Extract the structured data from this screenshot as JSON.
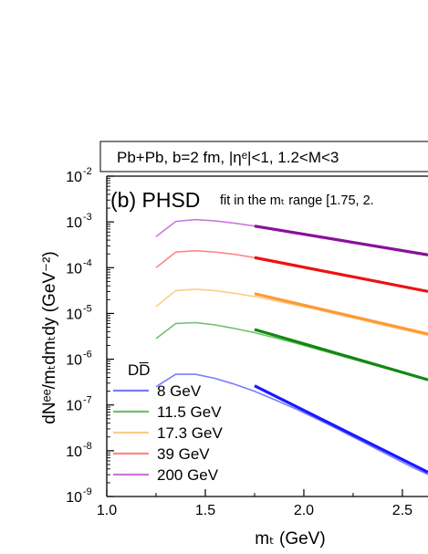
{
  "chart_data": {
    "type": "line",
    "header": "Pb+Pb, b=2 fm, |ηᵉ|<1, 1.2<M<3",
    "panel_label": "(b) PHSD",
    "fit_note": "fit in the mₜ range [1.75, 2.",
    "xlabel": "mₜ (GeV)",
    "ylabel": "dNᵉᵉ/mₜdmₜdy (GeV⁻²)",
    "xlim": [
      1.0,
      2.63
    ],
    "ylim_log10": [
      -9,
      -2
    ],
    "y_scale": "log",
    "grid": false,
    "x_ticks": [
      1.0,
      1.5,
      2.0,
      2.5
    ],
    "x_tick_labels": [
      "1.0",
      "1.5",
      "2.0",
      "2.5"
    ],
    "y_ticks_log10": [
      -9,
      -8,
      -7,
      -6,
      -5,
      -4,
      -3,
      -2
    ],
    "y_tick_labels": [
      {
        "base": "10",
        "exp": "-9"
      },
      {
        "base": "10",
        "exp": "-8"
      },
      {
        "base": "10",
        "exp": "-7"
      },
      {
        "base": "10",
        "exp": "-6"
      },
      {
        "base": "10",
        "exp": "-5"
      },
      {
        "base": "10",
        "exp": "-4"
      },
      {
        "base": "10",
        "exp": "-3"
      },
      {
        "base": "10",
        "exp": "-2"
      }
    ],
    "legend_title": "DD̅",
    "legend_placement": "bottom-left",
    "x": [
      1.25,
      1.35,
      1.45,
      1.55,
      1.65,
      1.75,
      1.85,
      1.95,
      2.05,
      2.15,
      2.25,
      2.35,
      2.45,
      2.55,
      2.63
    ],
    "series": [
      {
        "name": "8 GeV",
        "color": "#7b7bff",
        "fit_color": "#1a1aff",
        "log10_y": [
          -6.6,
          -6.33,
          -6.33,
          -6.42,
          -6.55,
          -6.7,
          -6.88,
          -7.07,
          -7.27,
          -7.48,
          -7.7,
          -7.92,
          -8.14,
          -8.36,
          -8.52
        ],
        "fit_x": [
          1.75,
          2.63
        ],
        "fit_log10_y": [
          -6.58,
          -8.47
        ]
      },
      {
        "name": "11.5 GeV",
        "color": "#6fbf6f",
        "fit_color": "#118811",
        "log10_y": [
          -5.55,
          -5.22,
          -5.2,
          -5.25,
          -5.33,
          -5.42,
          -5.53,
          -5.64,
          -5.76,
          -5.88,
          -6.0,
          -6.12,
          -6.24,
          -6.36,
          -6.46
        ],
        "fit_x": [
          1.75,
          2.63
        ],
        "fit_log10_y": [
          -5.35,
          -6.45
        ]
      },
      {
        "name": "17.3 GeV",
        "color": "#ffcc88",
        "fit_color": "#ff9933",
        "log10_y": [
          -4.85,
          -4.5,
          -4.47,
          -4.5,
          -4.56,
          -4.63,
          -4.72,
          -4.81,
          -4.9,
          -5.0,
          -5.1,
          -5.2,
          -5.3,
          -5.4,
          -5.48
        ],
        "fit_x": [
          1.75,
          2.63
        ],
        "fit_log10_y": [
          -4.57,
          -5.45
        ]
      },
      {
        "name": "39 GeV",
        "color": "#ff8888",
        "fit_color": "#ee1111",
        "log10_y": [
          -4.0,
          -3.66,
          -3.63,
          -3.66,
          -3.71,
          -3.78,
          -3.86,
          -3.94,
          -4.02,
          -4.11,
          -4.2,
          -4.28,
          -4.37,
          -4.46,
          -4.53
        ],
        "fit_x": [
          1.75,
          2.63
        ],
        "fit_log10_y": [
          -3.78,
          -4.52
        ]
      },
      {
        "name": "200 GeV",
        "color": "#cc77dd",
        "fit_color": "#881199",
        "log10_y": [
          -3.32,
          -2.99,
          -2.95,
          -2.98,
          -3.03,
          -3.09,
          -3.15,
          -3.22,
          -3.29,
          -3.36,
          -3.44,
          -3.51,
          -3.58,
          -3.66,
          -3.72
        ],
        "fit_x": [
          1.75,
          2.63
        ],
        "fit_log10_y": [
          -3.09,
          -3.72
        ]
      }
    ]
  }
}
